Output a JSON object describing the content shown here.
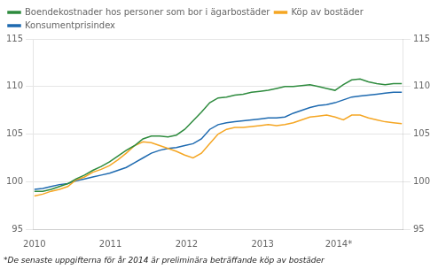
{
  "chart_data": {
    "type": "line",
    "footnote": "*De senaste uppgifterna för år 2014 är preliminära beträffande köp av bostäder",
    "x": [
      2010,
      2010.109773,
      2010.219545,
      2010.329318,
      2010.439091,
      2010.548864,
      2010.658636,
      2010.768409,
      2010.878182,
      2010.987955,
      2011.097727,
      2011.2075,
      2011.317273,
      2011.427045,
      2011.536818,
      2011.646591,
      2011.756364,
      2011.866136,
      2011.975909,
      2012.085682,
      2012.195455,
      2012.305227,
      2012.415,
      2012.524773,
      2012.634545,
      2012.744318,
      2012.854091,
      2012.963864,
      2013.073636,
      2013.183409,
      2013.293182,
      2013.402955,
      2013.512727,
      2013.6225,
      2013.732273,
      2013.842045,
      2013.951818,
      2014.061591,
      2014.171364,
      2014.281136,
      2014.390909,
      2014.500682,
      2014.610455,
      2014.720227,
      2014.83
    ],
    "series": [
      {
        "name": "Boendekostnader hos personer som bor i ägarbostäder",
        "color": "#2e8b3e",
        "values": [
          99.0,
          99.0,
          99.2,
          99.5,
          99.8,
          100.3,
          100.7,
          101.2,
          101.6,
          102.1,
          102.7,
          103.3,
          103.8,
          104.5,
          104.8,
          104.8,
          104.7,
          104.9,
          105.5,
          106.4,
          107.3,
          108.3,
          108.8,
          108.9,
          109.1,
          109.2,
          109.4,
          109.5,
          109.6,
          109.8,
          110.0,
          110.0,
          110.1,
          110.2,
          110.0,
          109.8,
          109.6,
          110.2,
          110.7,
          110.8,
          110.5,
          110.3,
          110.2,
          110.3,
          110.3
        ]
      },
      {
        "name": "Köp av bostäder",
        "color": "#f5a623",
        "values": [
          98.5,
          98.7,
          99.0,
          99.2,
          99.5,
          100.2,
          100.5,
          101.0,
          101.3,
          101.7,
          102.3,
          103.0,
          103.8,
          104.2,
          104.1,
          103.8,
          103.5,
          103.2,
          102.8,
          102.5,
          103.0,
          104.0,
          105.0,
          105.5,
          105.7,
          105.7,
          105.8,
          105.9,
          106.0,
          105.9,
          106.0,
          106.2,
          106.5,
          106.8,
          106.9,
          107.0,
          106.8,
          106.5,
          107.0,
          107.0,
          106.7,
          106.5,
          106.3,
          106.2,
          106.1
        ]
      },
      {
        "name": "Konsumentprisindex",
        "color": "#1e6ab0",
        "values": [
          99.2,
          99.3,
          99.5,
          99.7,
          99.8,
          100.1,
          100.3,
          100.5,
          100.7,
          100.9,
          101.2,
          101.5,
          102.0,
          102.5,
          103.0,
          103.3,
          103.5,
          103.6,
          103.8,
          104.0,
          104.5,
          105.5,
          106.0,
          106.2,
          106.3,
          106.4,
          106.5,
          106.6,
          106.7,
          106.7,
          106.8,
          107.2,
          107.5,
          107.8,
          108.0,
          108.1,
          108.3,
          108.6,
          108.9,
          109.0,
          109.1,
          109.2,
          109.3,
          109.4,
          109.4
        ]
      }
    ],
    "xlim": [
      2009.98,
      2014.85
    ],
    "xticks": [
      2010,
      2011,
      2012,
      2013,
      {
        "value": 2014,
        "label": "2014*"
      }
    ],
    "ylim": [
      95,
      115
    ],
    "yticks": [
      95,
      100,
      105,
      110,
      115
    ],
    "y2lim": [
      95,
      115
    ],
    "y2ticks": [
      95,
      100,
      105,
      110,
      115
    ],
    "grid": "y",
    "legend": "upper left"
  }
}
